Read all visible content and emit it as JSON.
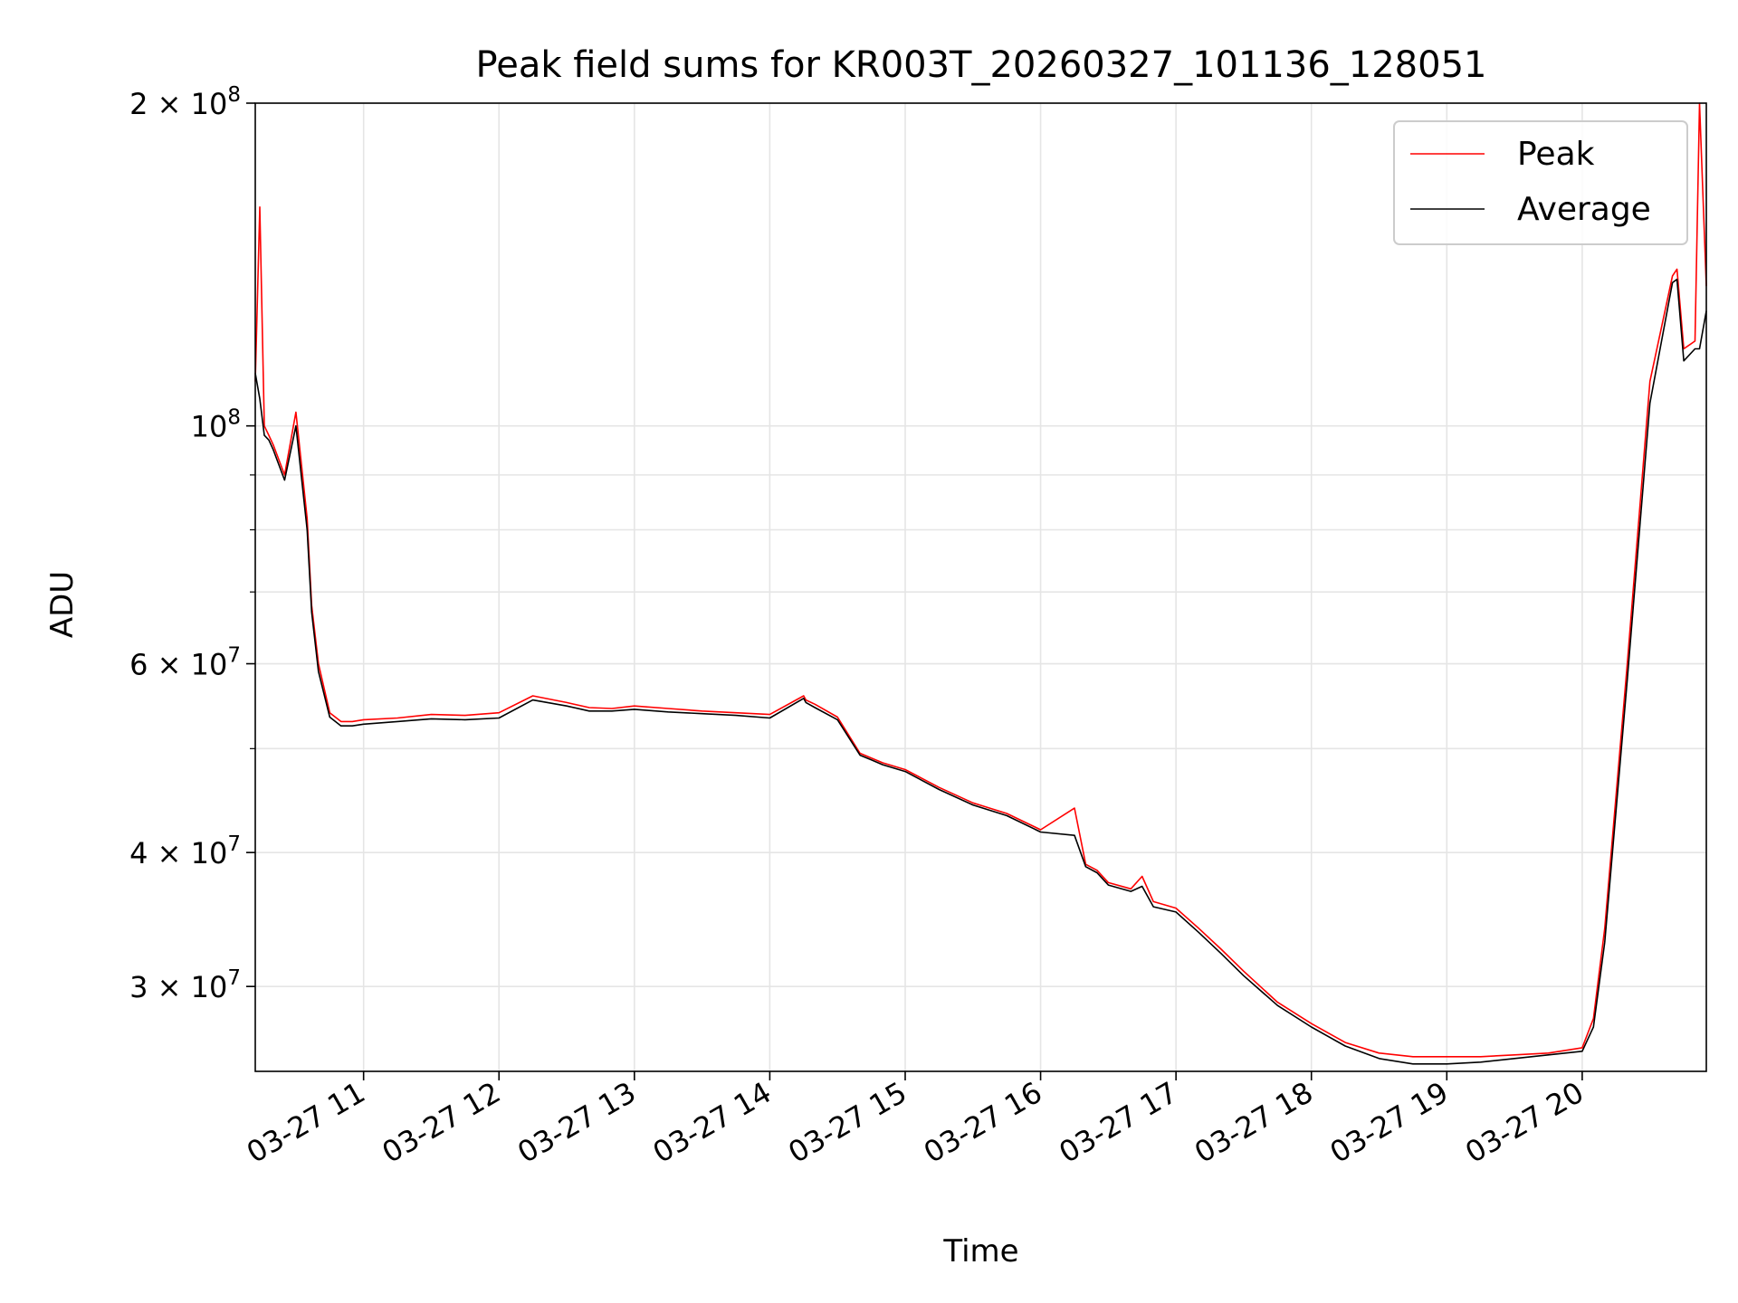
{
  "chart_data": {
    "type": "line",
    "title": "Peak field sums for KR003T_20260327_101136_128051",
    "xlabel": "Time",
    "ylabel": "ADU",
    "yscale": "log",
    "ylim": [
      25000000,
      200000000
    ],
    "xlim": [
      "03-27 10:12",
      "03-27 20:55"
    ],
    "grid": true,
    "legend": "upper right",
    "x_ticks": [
      {
        "t": "03-27 11:00",
        "label": "03-27 11"
      },
      {
        "t": "03-27 12:00",
        "label": "03-27 12"
      },
      {
        "t": "03-27 13:00",
        "label": "03-27 13"
      },
      {
        "t": "03-27 14:00",
        "label": "03-27 14"
      },
      {
        "t": "03-27 15:00",
        "label": "03-27 15"
      },
      {
        "t": "03-27 16:00",
        "label": "03-27 16"
      },
      {
        "t": "03-27 17:00",
        "label": "03-27 17"
      },
      {
        "t": "03-27 18:00",
        "label": "03-27 18"
      },
      {
        "t": "03-27 19:00",
        "label": "03-27 19"
      },
      {
        "t": "03-27 20:00",
        "label": "03-27 20"
      }
    ],
    "y_ticks": [
      {
        "v": 30000000,
        "mant": "3",
        "exp": "7"
      },
      {
        "v": 40000000,
        "mant": "4",
        "exp": "7"
      },
      {
        "v": 60000000,
        "mant": "6",
        "exp": "7"
      },
      {
        "v": 100000000,
        "mant": "",
        "exp": "8"
      },
      {
        "v": 200000000,
        "mant": "2",
        "exp": "8"
      }
    ],
    "y_minor_ticks": [
      50000000,
      70000000,
      80000000,
      90000000
    ],
    "x": [
      "03-27 10:12",
      "03-27 10:14",
      "03-27 10:16",
      "03-27 10:18",
      "03-27 10:20",
      "03-27 10:25",
      "03-27 10:30",
      "03-27 10:35",
      "03-27 10:37",
      "03-27 10:40",
      "03-27 10:45",
      "03-27 10:50",
      "03-27 10:55",
      "03-27 11:00",
      "03-27 11:15",
      "03-27 11:30",
      "03-27 11:45",
      "03-27 12:00",
      "03-27 12:15",
      "03-27 12:30",
      "03-27 12:40",
      "03-27 12:50",
      "03-27 13:00",
      "03-27 13:15",
      "03-27 13:30",
      "03-27 13:45",
      "03-27 14:00",
      "03-27 14:15",
      "03-27 14:16",
      "03-27 14:20",
      "03-27 14:30",
      "03-27 14:40",
      "03-27 14:45",
      "03-27 14:50",
      "03-27 15:00",
      "03-27 15:15",
      "03-27 15:30",
      "03-27 15:45",
      "03-27 16:00",
      "03-27 16:15",
      "03-27 16:20",
      "03-27 16:25",
      "03-27 16:30",
      "03-27 16:40",
      "03-27 16:45",
      "03-27 16:50",
      "03-27 17:00",
      "03-27 17:10",
      "03-27 17:20",
      "03-27 17:30",
      "03-27 17:45",
      "03-27 18:00",
      "03-27 18:15",
      "03-27 18:30",
      "03-27 18:45",
      "03-27 19:00",
      "03-27 19:15",
      "03-27 19:30",
      "03-27 19:45",
      "03-27 20:00",
      "03-27 20:05",
      "03-27 20:10",
      "03-27 20:20",
      "03-27 20:30",
      "03-27 20:40",
      "03-27 20:42",
      "03-27 20:45",
      "03-27 20:50",
      "03-27 20:52",
      "03-27 20:55"
    ],
    "series": [
      {
        "name": "Peak",
        "color": "#ff0000",
        "values": [
          110000000,
          160000000,
          100000000,
          98000000,
          96000000,
          90000000,
          103000000,
          82000000,
          68000000,
          60000000,
          54000000,
          53000000,
          53000000,
          53200000,
          53400000,
          53800000,
          53700000,
          54000000,
          56000000,
          55200000,
          54600000,
          54500000,
          54800000,
          54500000,
          54200000,
          54000000,
          53800000,
          56000000,
          55500000,
          55000000,
          53500000,
          49500000,
          49000000,
          48500000,
          47800000,
          46000000,
          44500000,
          43500000,
          42000000,
          44000000,
          39000000,
          38500000,
          37500000,
          37000000,
          38000000,
          36000000,
          35500000,
          34000000,
          32500000,
          31000000,
          29000000,
          27700000,
          26600000,
          26000000,
          25800000,
          25800000,
          25800000,
          25900000,
          26000000,
          26300000,
          28000000,
          34000000,
          60000000,
          110000000,
          138000000,
          140000000,
          118000000,
          120000000,
          200000000,
          135000000
        ]
      },
      {
        "name": "Average",
        "color": "#000000",
        "values": [
          112000000,
          106000000,
          98000000,
          97000000,
          95000000,
          89000000,
          100000000,
          80000000,
          67000000,
          59000000,
          53500000,
          52500000,
          52500000,
          52700000,
          53000000,
          53300000,
          53200000,
          53400000,
          55500000,
          54800000,
          54200000,
          54200000,
          54400000,
          54100000,
          53900000,
          53700000,
          53400000,
          55700000,
          55200000,
          54600000,
          53200000,
          49300000,
          48800000,
          48300000,
          47600000,
          45800000,
          44300000,
          43300000,
          41800000,
          41500000,
          38800000,
          38300000,
          37300000,
          36800000,
          37200000,
          35600000,
          35200000,
          33700000,
          32200000,
          30700000,
          28800000,
          27500000,
          26400000,
          25700000,
          25400000,
          25400000,
          25500000,
          25700000,
          25900000,
          26100000,
          27500000,
          33000000,
          58000000,
          105000000,
          136000000,
          137000000,
          115000000,
          118000000,
          118000000,
          128000000
        ]
      }
    ]
  }
}
